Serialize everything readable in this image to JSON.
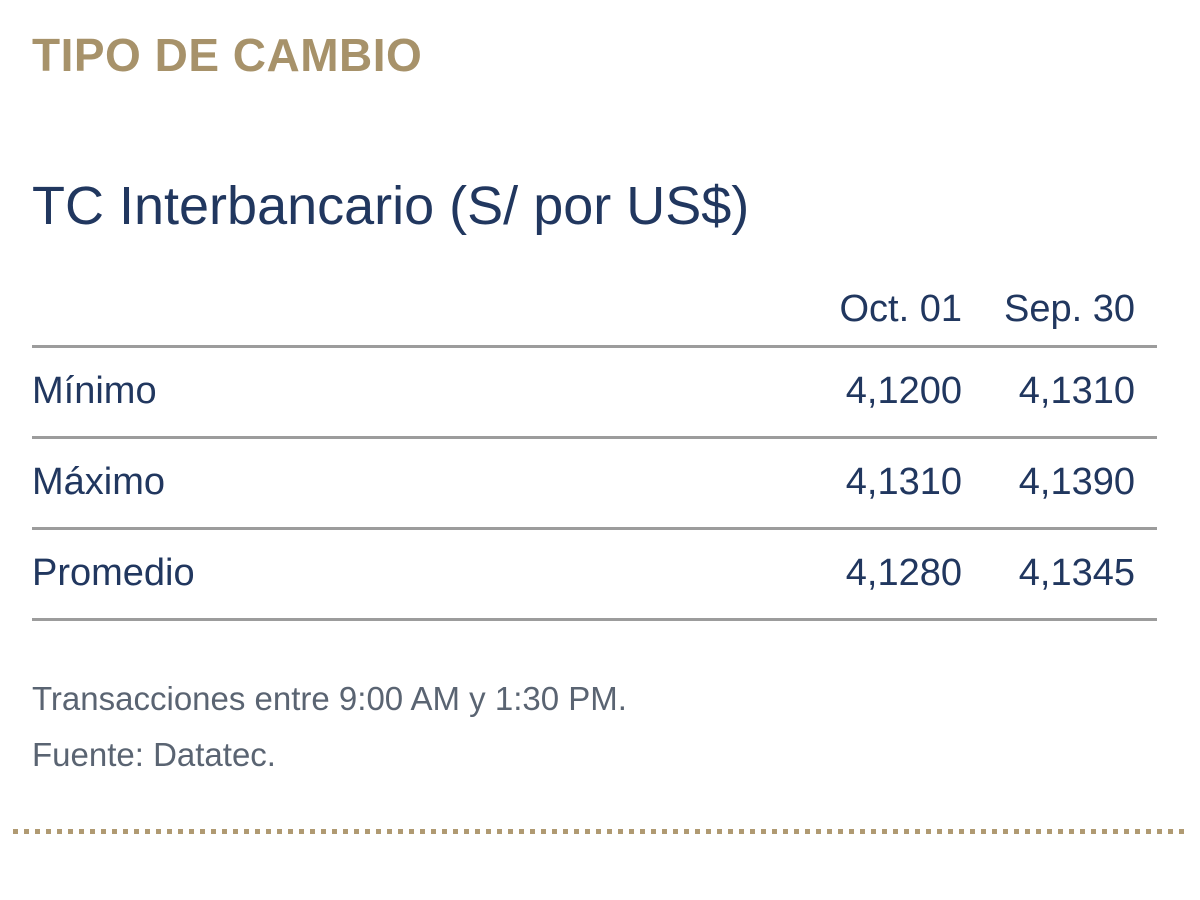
{
  "title": "TIPO DE CAMBIO",
  "subtitle": "TC Interbancario (S/ por US$)",
  "table": {
    "columns": [
      "Oct. 01",
      "Sep. 30"
    ],
    "rows": [
      {
        "label": "Mínimo",
        "values": [
          "4,1200",
          "4,1310"
        ]
      },
      {
        "label": "Máximo",
        "values": [
          "4,1310",
          "4,1390"
        ]
      },
      {
        "label": "Promedio",
        "values": [
          "4,1280",
          "4,1345"
        ]
      }
    ]
  },
  "footnotes": [
    "Transacciones entre 9:00 AM y 1:30 PM.",
    "Fuente: Datatec."
  ],
  "colors": {
    "title_gold": "#a7926a",
    "text_navy": "#21375f",
    "line_gray": "#9c9c9c",
    "footnote_gray": "#5a6472",
    "dashed_tan": "#b09a72"
  },
  "chart_data": {
    "type": "table",
    "title": "TC Interbancario (S/ por US$)",
    "columns": [
      "Oct. 01",
      "Sep. 30"
    ],
    "rows": [
      {
        "label": "Mínimo",
        "Oct. 01": 4.12,
        "Sep. 30": 4.131
      },
      {
        "label": "Máximo",
        "Oct. 01": 4.131,
        "Sep. 30": 4.139
      },
      {
        "label": "Promedio",
        "Oct. 01": 4.128,
        "Sep. 30": 4.1345
      }
    ],
    "notes": [
      "Transacciones entre 9:00 AM y 1:30 PM.",
      "Fuente: Datatec."
    ]
  }
}
